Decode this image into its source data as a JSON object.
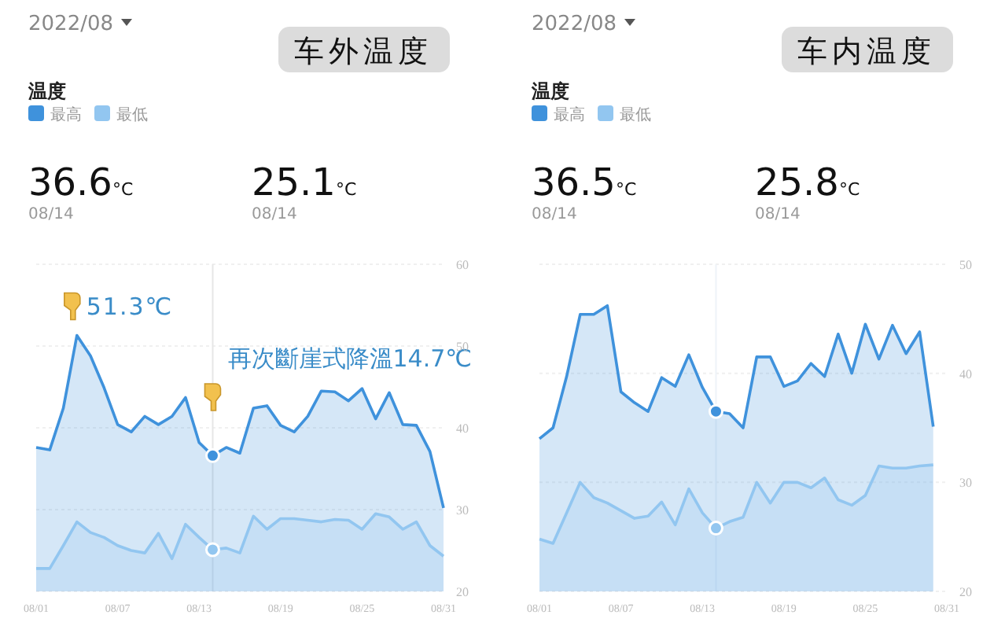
{
  "chart_data": [
    {
      "type": "area",
      "title": "车外温度",
      "subtitle": "2022/08",
      "legend_title": "温度",
      "legend": "top left",
      "grid": "y",
      "marker": "none",
      "x": [
        "--08-01",
        "--08-02",
        "--08-03",
        "--08-04",
        "--08-05",
        "--08-06",
        "--08-07",
        "--08-08",
        "--08-09",
        "--08-10",
        "--08-11",
        "--08-12",
        "--08-13",
        "--08-14",
        "--08-15",
        "--08-16",
        "--08-17",
        "--08-18",
        "--08-19",
        "--08-20",
        "--08-21",
        "--08-22",
        "--08-23",
        "--08-24",
        "--08-25",
        "--08-26",
        "--08-27",
        "--08-28",
        "--08-29",
        "--08-30",
        "--08-31"
      ],
      "series": [
        {
          "name": "最高",
          "color": "#3f92dc",
          "values": [
            37.6,
            37.3,
            42.4,
            51.3,
            48.8,
            44.9,
            40.4,
            39.5,
            41.4,
            40.4,
            41.4,
            43.7,
            38.2,
            36.6,
            37.6,
            36.9,
            42.4,
            42.7,
            40.3,
            39.5,
            41.4,
            44.5,
            44.4,
            43.3,
            44.8,
            41.1,
            44.3,
            40.4,
            40.3,
            37.1,
            30.2
          ]
        },
        {
          "name": "最低",
          "color": "#92c6f0",
          "values": [
            22.8,
            22.8,
            25.6,
            28.5,
            27.2,
            26.6,
            25.6,
            25.0,
            24.7,
            27.1,
            24.0,
            28.2,
            26.6,
            25.1,
            25.3,
            24.7,
            29.2,
            27.6,
            28.9,
            28.9,
            28.7,
            28.5,
            28.8,
            28.7,
            27.6,
            29.5,
            29.1,
            27.6,
            28.5,
            25.6,
            24.3
          ]
        }
      ],
      "xlim": [
        "--08-01",
        "--08-31"
      ],
      "xticks": [
        {
          "value": "--08-01",
          "label": "08/01"
        },
        {
          "value": "--08-07",
          "label": "08/07"
        },
        {
          "value": "--08-13",
          "label": "08/13"
        },
        {
          "value": "--08-19",
          "label": "08/19"
        },
        {
          "value": "--08-25",
          "label": "08/25"
        },
        {
          "value": "--08-31",
          "label": "08/31"
        }
      ],
      "ylim": [
        20,
        60
      ],
      "yticks": [
        20,
        30,
        40,
        50,
        60
      ],
      "ref_lines": [
        {
          "axis": "x",
          "value": "--08-14",
          "color": "#e6e6e6"
        }
      ],
      "annotations": [
        "36.6°C",
        "08/14",
        "25.1°C",
        "08/14",
        {
          "text": "51.3℃",
          "x": "--08-04",
          "y": 51.3
        },
        {
          "text": "再次斷崖式降溫14.7℃",
          "x": "--08-14"
        }
      ]
    },
    {
      "type": "area",
      "title": "车内温度",
      "subtitle": "2022/08",
      "legend_title": "温度",
      "legend": "top left",
      "grid": "y",
      "marker": "none",
      "x": [
        "--08-01",
        "--08-02",
        "--08-03",
        "--08-04",
        "--08-05",
        "--08-06",
        "--08-07",
        "--08-08",
        "--08-09",
        "--08-10",
        "--08-11",
        "--08-12",
        "--08-13",
        "--08-14",
        "--08-15",
        "--08-16",
        "--08-17",
        "--08-18",
        "--08-19",
        "--08-20",
        "--08-21",
        "--08-22",
        "--08-23",
        "--08-24",
        "--08-25",
        "--08-26",
        "--08-27",
        "--08-28",
        "--08-29",
        "--08-30"
      ],
      "series": [
        {
          "name": "最高",
          "color": "#3f92dc",
          "values": [
            34.0,
            35.0,
            39.7,
            45.4,
            45.4,
            46.2,
            38.3,
            37.3,
            36.5,
            39.6,
            38.8,
            41.7,
            38.7,
            36.5,
            36.3,
            35.0,
            41.5,
            41.5,
            38.8,
            39.3,
            40.9,
            39.7,
            43.6,
            40.0,
            44.5,
            41.3,
            44.4,
            41.8,
            43.8,
            35.1
          ]
        },
        {
          "name": "最低",
          "color": "#92c6f0",
          "values": [
            24.8,
            24.4,
            27.2,
            30.0,
            28.6,
            28.1,
            27.4,
            26.7,
            26.9,
            28.2,
            26.1,
            29.4,
            27.2,
            25.8,
            26.4,
            26.8,
            30.0,
            28.1,
            30.0,
            30.0,
            29.5,
            30.4,
            28.4,
            27.9,
            28.8,
            31.5,
            31.3,
            31.3,
            31.5,
            31.6
          ]
        }
      ],
      "xlim": [
        "--08-01",
        "--08-31"
      ],
      "xticks": [
        {
          "value": "--08-01",
          "label": "08/01"
        },
        {
          "value": "--08-07",
          "label": "08/07"
        },
        {
          "value": "--08-13",
          "label": "08/13"
        },
        {
          "value": "--08-19",
          "label": "08/19"
        },
        {
          "value": "--08-25",
          "label": "08/25"
        },
        {
          "value": "--08-31",
          "label": "08/31"
        }
      ],
      "ylim": [
        20,
        50
      ],
      "yticks": [
        20,
        30,
        40,
        50
      ],
      "ref_lines": [
        {
          "axis": "x",
          "value": "--08-14",
          "color": "#eef3f8"
        }
      ],
      "annotations": [
        "36.5°C",
        "08/14",
        "25.8°C",
        "08/14"
      ]
    }
  ]
}
